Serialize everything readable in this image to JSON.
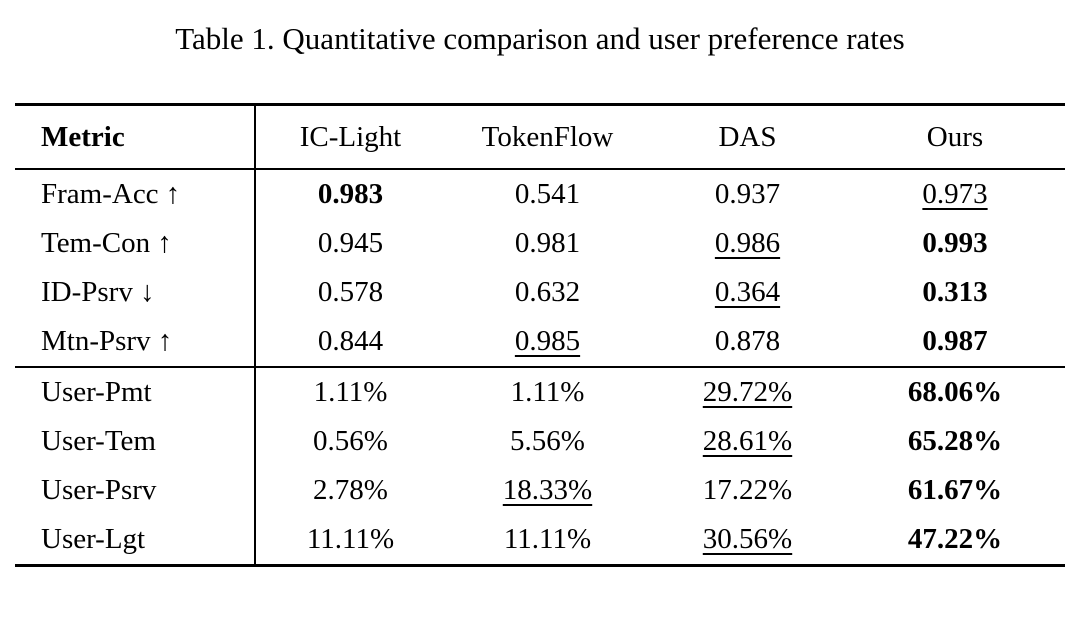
{
  "caption": "Table 1. Quantitative comparison and user preference rates",
  "table": {
    "columns": [
      "Metric",
      "IC-Light",
      "TokenFlow",
      "DAS",
      "Ours"
    ],
    "sections": [
      {
        "rows": [
          {
            "metric": "Fram-Acc ↑",
            "values": [
              {
                "text": "0.983",
                "style": "bold"
              },
              {
                "text": "0.541",
                "style": "normal"
              },
              {
                "text": "0.937",
                "style": "normal"
              },
              {
                "text": "0.973",
                "style": "underline"
              }
            ]
          },
          {
            "metric": "Tem-Con ↑",
            "values": [
              {
                "text": "0.945",
                "style": "normal"
              },
              {
                "text": "0.981",
                "style": "normal"
              },
              {
                "text": "0.986",
                "style": "underline"
              },
              {
                "text": "0.993",
                "style": "bold"
              }
            ]
          },
          {
            "metric": "ID-Psrv ↓",
            "values": [
              {
                "text": "0.578",
                "style": "normal"
              },
              {
                "text": "0.632",
                "style": "normal"
              },
              {
                "text": "0.364",
                "style": "underline"
              },
              {
                "text": "0.313",
                "style": "bold"
              }
            ]
          },
          {
            "metric": "Mtn-Psrv ↑",
            "values": [
              {
                "text": "0.844",
                "style": "normal"
              },
              {
                "text": "0.985",
                "style": "underline"
              },
              {
                "text": "0.878",
                "style": "normal"
              },
              {
                "text": "0.987",
                "style": "bold"
              }
            ]
          }
        ]
      },
      {
        "rows": [
          {
            "metric": "User-Pmt",
            "values": [
              {
                "text": "1.11%",
                "style": "normal"
              },
              {
                "text": "1.11%",
                "style": "normal"
              },
              {
                "text": "29.72%",
                "style": "underline"
              },
              {
                "text": "68.06%",
                "style": "bold"
              }
            ]
          },
          {
            "metric": "User-Tem",
            "values": [
              {
                "text": "0.56%",
                "style": "normal"
              },
              {
                "text": "5.56%",
                "style": "normal"
              },
              {
                "text": "28.61%",
                "style": "underline"
              },
              {
                "text": "65.28%",
                "style": "bold"
              }
            ]
          },
          {
            "metric": "User-Psrv",
            "values": [
              {
                "text": "2.78%",
                "style": "normal"
              },
              {
                "text": "18.33%",
                "style": "underline"
              },
              {
                "text": "17.22%",
                "style": "normal"
              },
              {
                "text": "61.67%",
                "style": "bold"
              }
            ]
          },
          {
            "metric": "User-Lgt",
            "values": [
              {
                "text": "11.11%",
                "style": "normal"
              },
              {
                "text": "11.11%",
                "style": "normal"
              },
              {
                "text": "30.56%",
                "style": "underline"
              },
              {
                "text": "47.22%",
                "style": "bold"
              }
            ]
          }
        ]
      }
    ]
  }
}
